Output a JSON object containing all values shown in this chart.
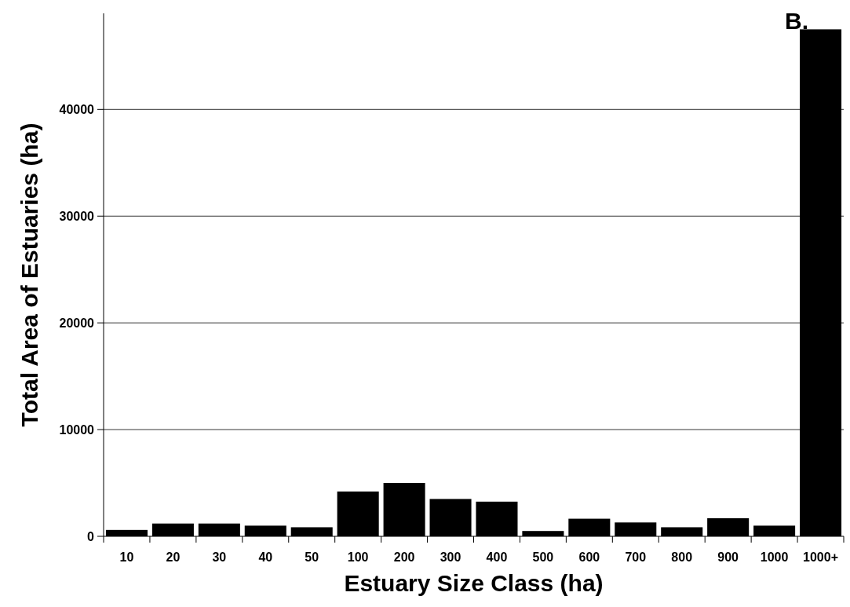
{
  "chart_data": {
    "type": "bar",
    "title": "B.",
    "xlabel": "Estuary Size Class (ha)",
    "ylabel": "Total Area of Estuaries (ha)",
    "categories": [
      "10",
      "20",
      "30",
      "40",
      "50",
      "100",
      "200",
      "300",
      "400",
      "500",
      "600",
      "700",
      "800",
      "900",
      "1000",
      "1000+"
    ],
    "values": [
      600,
      1200,
      1200,
      1000,
      850,
      4200,
      5000,
      3500,
      3250,
      500,
      1650,
      1300,
      850,
      1700,
      1000,
      47500
    ],
    "color": "#000000",
    "ylim": [
      0,
      49000
    ],
    "yticks": [
      0,
      10000,
      20000,
      30000,
      40000
    ],
    "grid": "y"
  }
}
